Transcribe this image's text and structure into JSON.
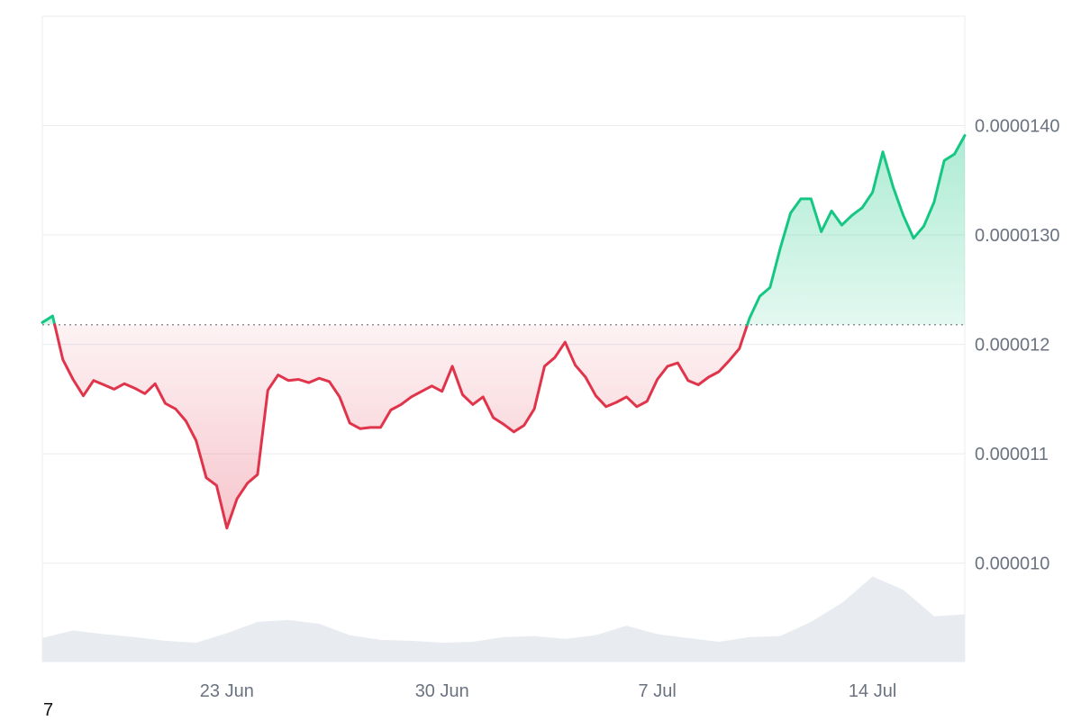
{
  "corner_label": "7",
  "colors": {
    "up": "#16c784",
    "down": "#e0344b",
    "up_fill": "#16c784",
    "down_fill": "#e0344b",
    "volume": "#e8ecf1",
    "grid": "#e9ecef",
    "axis_text": "#6b7280",
    "baseline": "#8a8f98"
  },
  "chart_data": {
    "type": "line",
    "title": "",
    "xlabel": "",
    "ylabel": "",
    "x_range": [
      "2025-06-17",
      "2025-07-17"
    ],
    "ylim": [
      9.1e-06,
      1.5e-05
    ],
    "baseline": 1.218e-05,
    "grid": true,
    "y_ticks": [
      {
        "value": 1.4e-05,
        "label": "0.0000140"
      },
      {
        "value": 1.3e-05,
        "label": "0.0000130"
      },
      {
        "value": 1.2e-05,
        "label": "0.000012"
      },
      {
        "value": 1.1e-05,
        "label": "0.000011"
      },
      {
        "value": 1e-05,
        "label": "0.000010"
      }
    ],
    "x_ticks": [
      {
        "date": "2025-06-23",
        "label": "23 Jun"
      },
      {
        "date": "2025-06-30",
        "label": "30 Jun"
      },
      {
        "date": "2025-07-07",
        "label": "7 Jul"
      },
      {
        "date": "2025-07-14",
        "label": "14 Jul"
      }
    ],
    "series": [
      {
        "x": [
          "2025-06-17T00:00",
          "2025-06-17T08:00",
          "2025-06-17T16:00",
          "2025-06-18T00:00",
          "2025-06-18T08:00",
          "2025-06-18T16:00",
          "2025-06-19T00:00",
          "2025-06-19T08:00",
          "2025-06-19T16:00",
          "2025-06-20T00:00",
          "2025-06-20T08:00",
          "2025-06-20T16:00",
          "2025-06-21T00:00",
          "2025-06-21T08:00",
          "2025-06-21T16:00",
          "2025-06-22T00:00",
          "2025-06-22T08:00",
          "2025-06-22T16:00",
          "2025-06-23T00:00",
          "2025-06-23T08:00",
          "2025-06-23T16:00",
          "2025-06-24T00:00",
          "2025-06-24T08:00",
          "2025-06-24T16:00",
          "2025-06-25T00:00",
          "2025-06-25T08:00",
          "2025-06-25T16:00",
          "2025-06-26T00:00",
          "2025-06-26T08:00",
          "2025-06-26T16:00",
          "2025-06-27T00:00",
          "2025-06-27T08:00",
          "2025-06-27T16:00",
          "2025-06-28T00:00",
          "2025-06-28T08:00",
          "2025-06-28T16:00",
          "2025-06-29T00:00",
          "2025-06-29T08:00",
          "2025-06-29T16:00",
          "2025-06-30T00:00",
          "2025-06-30T08:00",
          "2025-06-30T16:00",
          "2025-07-01T00:00",
          "2025-07-01T08:00",
          "2025-07-01T16:00",
          "2025-07-02T00:00",
          "2025-07-02T08:00",
          "2025-07-02T16:00",
          "2025-07-03T00:00",
          "2025-07-03T08:00",
          "2025-07-03T16:00",
          "2025-07-04T00:00",
          "2025-07-04T08:00",
          "2025-07-04T16:00",
          "2025-07-05T00:00",
          "2025-07-05T08:00",
          "2025-07-05T16:00",
          "2025-07-06T00:00",
          "2025-07-06T08:00",
          "2025-07-06T16:00",
          "2025-07-07T00:00",
          "2025-07-07T08:00",
          "2025-07-07T16:00",
          "2025-07-08T00:00",
          "2025-07-08T08:00",
          "2025-07-08T16:00",
          "2025-07-09T00:00",
          "2025-07-09T08:00",
          "2025-07-09T16:00",
          "2025-07-10T00:00",
          "2025-07-10T08:00",
          "2025-07-10T16:00",
          "2025-07-11T00:00",
          "2025-07-11T08:00",
          "2025-07-11T16:00",
          "2025-07-12T00:00",
          "2025-07-12T08:00",
          "2025-07-12T16:00",
          "2025-07-13T00:00",
          "2025-07-13T08:00",
          "2025-07-13T16:00",
          "2025-07-14T00:00",
          "2025-07-14T08:00",
          "2025-07-14T16:00",
          "2025-07-15T00:00",
          "2025-07-15T08:00",
          "2025-07-15T16:00",
          "2025-07-16T00:00",
          "2025-07-16T08:00",
          "2025-07-16T16:00",
          "2025-07-17T00:00"
        ],
        "values": [
          1.22e-05,
          1.226e-05,
          1.186e-05,
          1.168e-05,
          1.153e-05,
          1.167e-05,
          1.163e-05,
          1.159e-05,
          1.164e-05,
          1.16e-05,
          1.155e-05,
          1.164e-05,
          1.146e-05,
          1.141e-05,
          1.13e-05,
          1.112e-05,
          1.078e-05,
          1.071e-05,
          1.032e-05,
          1.059e-05,
          1.073e-05,
          1.081e-05,
          1.158e-05,
          1.172e-05,
          1.167e-05,
          1.168e-05,
          1.165e-05,
          1.169e-05,
          1.166e-05,
          1.152e-05,
          1.128e-05,
          1.123e-05,
          1.124e-05,
          1.124e-05,
          1.14e-05,
          1.145e-05,
          1.152e-05,
          1.157e-05,
          1.162e-05,
          1.157e-05,
          1.18e-05,
          1.154e-05,
          1.145e-05,
          1.152e-05,
          1.133e-05,
          1.127e-05,
          1.12e-05,
          1.126e-05,
          1.141e-05,
          1.18e-05,
          1.188e-05,
          1.202e-05,
          1.181e-05,
          1.17e-05,
          1.153e-05,
          1.143e-05,
          1.147e-05,
          1.152e-05,
          1.143e-05,
          1.148e-05,
          1.168e-05,
          1.18e-05,
          1.183e-05,
          1.167e-05,
          1.163e-05,
          1.17e-05,
          1.175e-05,
          1.185e-05,
          1.196e-05,
          1.224e-05,
          1.244e-05,
          1.252e-05,
          1.288e-05,
          1.32e-05,
          1.333e-05,
          1.333e-05,
          1.303e-05,
          1.322e-05,
          1.309e-05,
          1.318e-05,
          1.325e-05,
          1.339e-05,
          1.376e-05,
          1.344e-05,
          1.318e-05,
          1.297e-05,
          1.308e-05,
          1.33e-05,
          1.368e-05,
          1.374e-05,
          1.391e-05
        ]
      }
    ],
    "volume": {
      "x": [
        "2025-06-17",
        "2025-06-18",
        "2025-06-19",
        "2025-06-20",
        "2025-06-21",
        "2025-06-22",
        "2025-06-23",
        "2025-06-24",
        "2025-06-25",
        "2025-06-26",
        "2025-06-27",
        "2025-06-28",
        "2025-06-29",
        "2025-06-30",
        "2025-07-01",
        "2025-07-02",
        "2025-07-03",
        "2025-07-04",
        "2025-07-05",
        "2025-07-06",
        "2025-07-07",
        "2025-07-08",
        "2025-07-09",
        "2025-07-10",
        "2025-07-11",
        "2025-07-12",
        "2025-07-13",
        "2025-07-14",
        "2025-07-15",
        "2025-07-16",
        "2025-07-17"
      ],
      "values": [
        25,
        33,
        29,
        26,
        22,
        20,
        30,
        42,
        44,
        40,
        28,
        23,
        22,
        20,
        21,
        26,
        27,
        24,
        28,
        38,
        29,
        25,
        21,
        26,
        27,
        42,
        62,
        90,
        76,
        48,
        50
      ]
    }
  }
}
